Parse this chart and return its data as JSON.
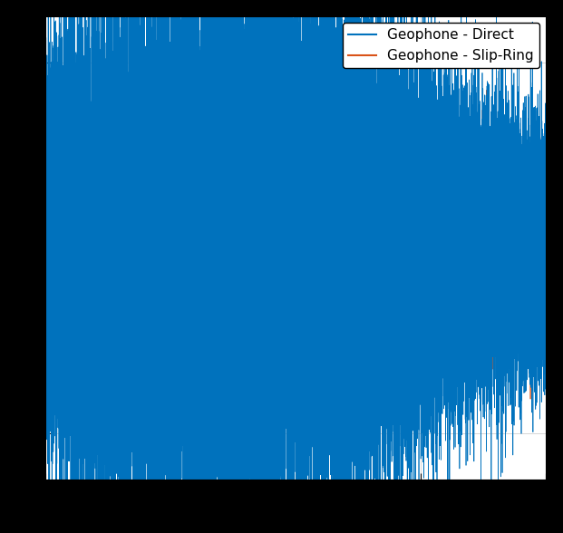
{
  "title": "",
  "xlabel": "",
  "ylabel": "",
  "legend_labels": [
    "Geophone - Direct",
    "Geophone - Slip-Ring"
  ],
  "colors": [
    "#0072BD",
    "#D95319"
  ],
  "line_width": 0.5,
  "figsize": [
    6.21,
    5.88
  ],
  "dpi": 100,
  "grid": true,
  "background_color": "#ffffff",
  "outer_background": "#000000",
  "n_samples": 50000,
  "seed_direct": 7,
  "seed_slipring": 3,
  "direct_amplitude": 1.0,
  "slipring_amplitude": 0.38,
  "direct_envelope_freq": 0.7,
  "direct_envelope_amp": 0.4,
  "ylim": [
    -2.5,
    2.5
  ],
  "legend_fontsize": 11
}
